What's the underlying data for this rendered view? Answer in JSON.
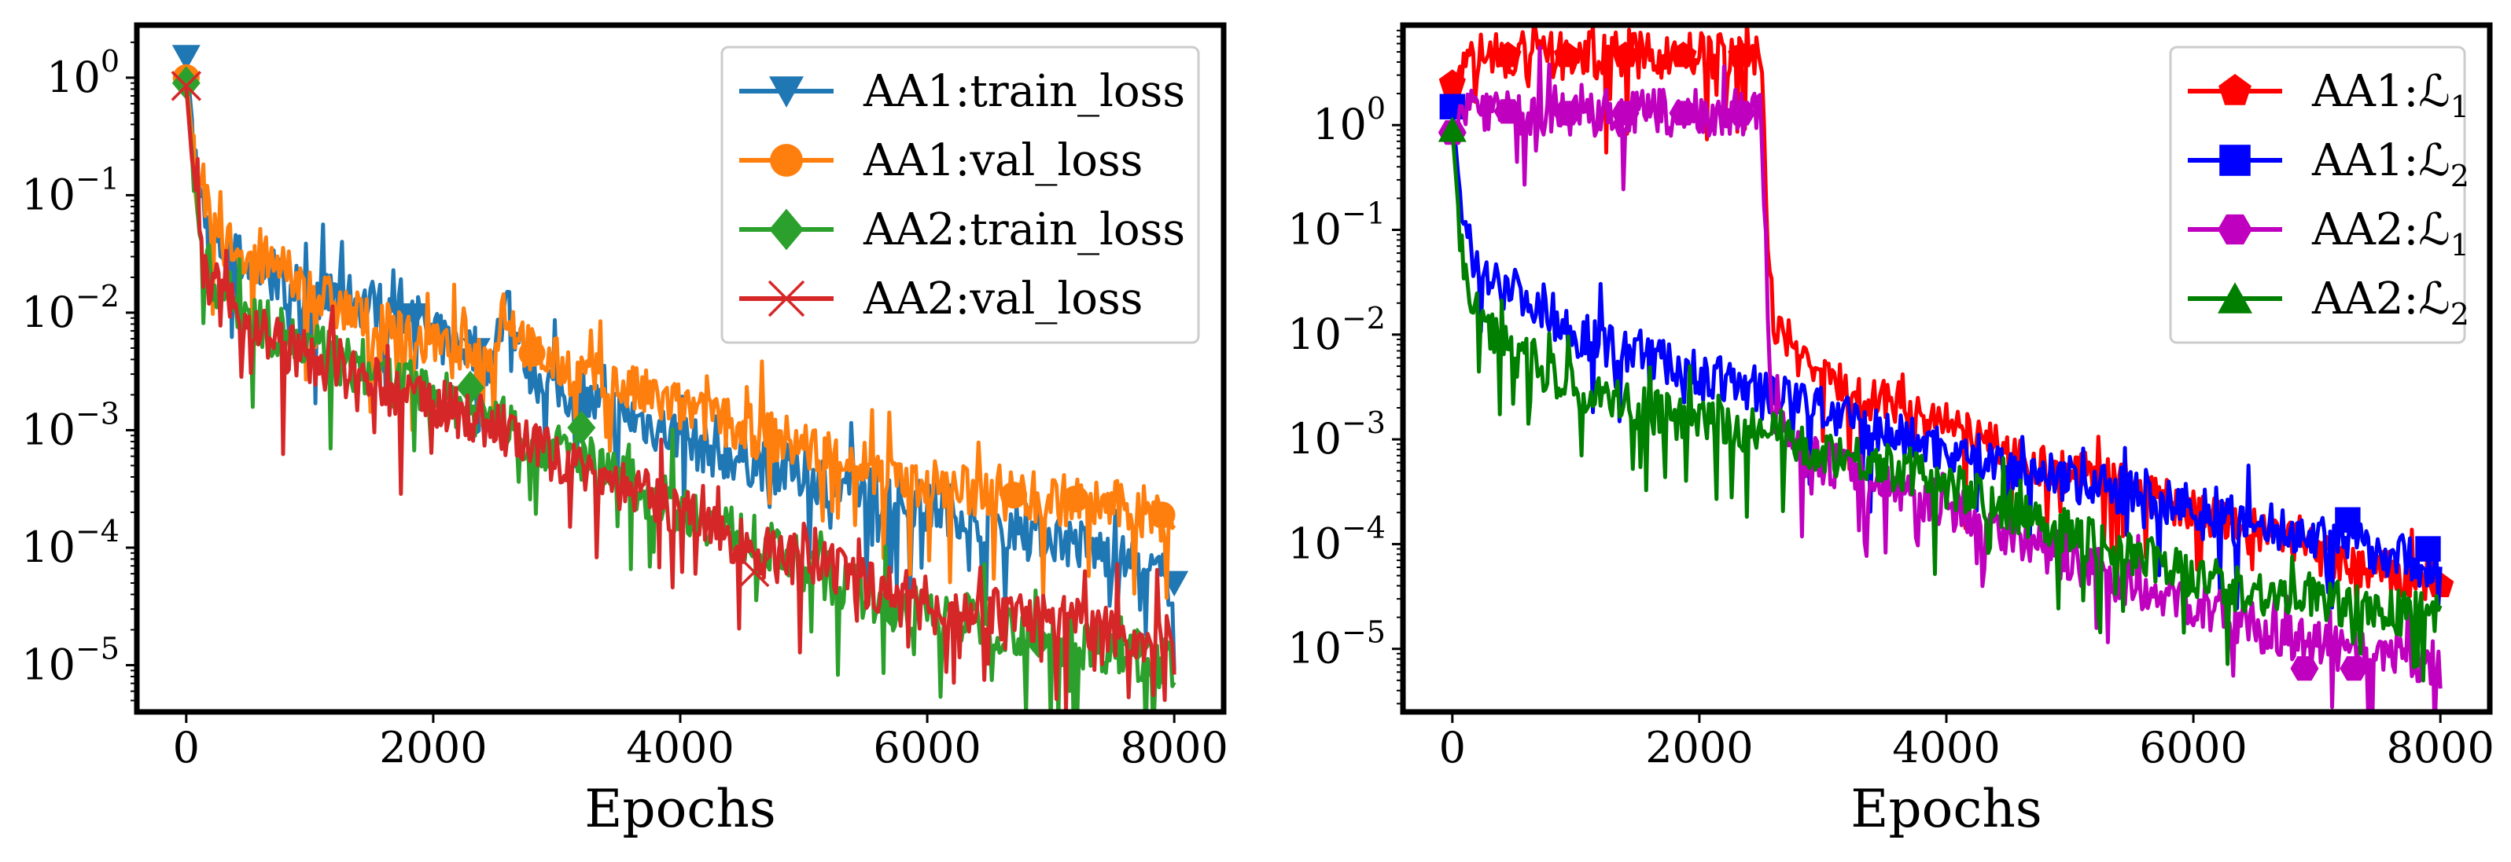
{
  "chart_data": [
    {
      "type": "line",
      "yscale": "log",
      "xlabel": "Epochs",
      "ylabel": "",
      "xlim": [
        -400,
        8400
      ],
      "ylim": [
        4e-06,
        2.8
      ],
      "xticks": [
        0,
        2000,
        4000,
        6000,
        8000
      ],
      "xtick_labels": [
        "0",
        "2000",
        "4000",
        "6000",
        "8000"
      ],
      "yticks": [
        1,
        0.1,
        0.01,
        0.001,
        0.0001,
        1e-05
      ],
      "ytick_labels": [
        {
          "base": "10",
          "exp": "0"
        },
        {
          "base": "10",
          "exp": "−1"
        },
        {
          "base": "10",
          "exp": "−2"
        },
        {
          "base": "10",
          "exp": "−3"
        },
        {
          "base": "10",
          "exp": "−4"
        },
        {
          "base": "10",
          "exp": "−5"
        }
      ],
      "legend_position": "top-right",
      "series": [
        {
          "name": "AA1:train_loss",
          "color": "#1f77b4",
          "marker": "triangle-down",
          "x": [
            0,
            50,
            100,
            200,
            400,
            700,
            1000,
            1500,
            1850,
            2000,
            2350,
            2500,
            2550,
            2800,
            3200,
            3700,
            4200,
            4700,
            5300,
            5800,
            6300,
            6800,
            7300,
            7700,
            8000
          ],
          "y": [
            1.5,
            0.4,
            0.1,
            0.04,
            0.03,
            0.02,
            0.015,
            0.012,
            0.0095,
            0.006,
            0.0048,
            0.0035,
            0.015,
            0.003,
            0.0018,
            0.0012,
            0.0007,
            0.0005,
            0.00035,
            0.00025,
            0.0002,
            0.00015,
            0.0001,
            7e-05,
            5e-05
          ],
          "marker_x": [
            0,
            1850,
            2350,
            8000
          ],
          "marker_y": [
            1.5,
            0.0095,
            0.0048,
            5e-05
          ]
        },
        {
          "name": "AA1:val_loss",
          "color": "#ff7f0e",
          "marker": "circle",
          "x": [
            0,
            50,
            100,
            200,
            400,
            700,
            1000,
            1500,
            2000,
            2500,
            2550,
            2800,
            3200,
            3700,
            4200,
            4700,
            5300,
            5800,
            6300,
            6700,
            7200,
            7700,
            8000
          ],
          "y": [
            1.0,
            0.3,
            0.09,
            0.05,
            0.035,
            0.025,
            0.015,
            0.008,
            0.005,
            0.004,
            0.012,
            0.0045,
            0.003,
            0.002,
            0.0013,
            0.0009,
            0.0006,
            0.0004,
            0.0003,
            0.00028,
            0.00025,
            0.00021,
            0.00017
          ],
          "marker_x": [
            0,
            2800,
            6700,
            7200,
            7900
          ],
          "marker_y": [
            1.0,
            0.0045,
            0.00028,
            0.00026,
            0.00019
          ]
        },
        {
          "name": "AA2:train_loss",
          "color": "#2ca02c",
          "marker": "diamond",
          "x": [
            0,
            50,
            100,
            200,
            400,
            700,
            1000,
            1500,
            2000,
            2500,
            2800,
            3200,
            3700,
            4200,
            4700,
            5300,
            5800,
            6300,
            6900,
            7500,
            8000
          ],
          "y": [
            0.9,
            0.2,
            0.05,
            0.02,
            0.012,
            0.007,
            0.005,
            0.003,
            0.002,
            0.0013,
            0.0008,
            0.0006,
            0.0003,
            0.00018,
            0.0001,
            5e-05,
            3e-05,
            2.5e-05,
            1.8e-05,
            1.4e-05,
            1e-05
          ],
          "marker_x": [
            0,
            2300,
            3200,
            5700,
            6900,
            7700
          ],
          "marker_y": [
            0.9,
            0.0023,
            0.00105,
            3e-05,
            1.6e-05,
            1.5e-05
          ]
        },
        {
          "name": "AA2:val_loss",
          "color": "#d62728",
          "marker": "x",
          "x": [
            0,
            50,
            100,
            200,
            400,
            700,
            1000,
            1500,
            2000,
            2500,
            2800,
            3200,
            3700,
            4200,
            4700,
            5300,
            5800,
            6300,
            6900,
            7500,
            8000
          ],
          "y": [
            0.85,
            0.18,
            0.04,
            0.015,
            0.01,
            0.006,
            0.004,
            0.0025,
            0.0017,
            0.0011,
            0.0007,
            0.0005,
            0.00028,
            0.00016,
            9e-05,
            6e-05,
            4e-05,
            3e-05,
            2.5e-05,
            2e-05,
            1.5e-05
          ],
          "marker_x": [
            0,
            4600
          ],
          "marker_y": [
            0.85,
            6.2e-05
          ]
        }
      ]
    },
    {
      "type": "line",
      "yscale": "log",
      "xlabel": "Epochs",
      "ylabel": "",
      "xlim": [
        -400,
        8400
      ],
      "ylim": [
        2.5e-06,
        9
      ],
      "xticks": [
        0,
        2000,
        4000,
        6000,
        8000
      ],
      "xtick_labels": [
        "0",
        "2000",
        "4000",
        "6000",
        "8000"
      ],
      "yticks": [
        1,
        0.1,
        0.01,
        0.001,
        0.0001,
        1e-05
      ],
      "ytick_labels": [
        {
          "base": "10",
          "exp": "0"
        },
        {
          "base": "10",
          "exp": "−1"
        },
        {
          "base": "10",
          "exp": "−2"
        },
        {
          "base": "10",
          "exp": "−3"
        },
        {
          "base": "10",
          "exp": "−4"
        },
        {
          "base": "10",
          "exp": "−5"
        }
      ],
      "legend_position": "top-right",
      "series": [
        {
          "name": "AA1:ℒ",
          "sub": "1",
          "color": "#ff0000",
          "marker": "pentagon",
          "x": [
            0,
            150,
            400,
            2500,
            2520,
            2550,
            2600,
            2800,
            3200,
            3700,
            4200,
            4700,
            5300,
            5800,
            6300,
            6800,
            7300,
            8000
          ],
          "y": [
            2.5,
            4.6,
            4.6,
            4.6,
            1.2,
            0.1,
            0.015,
            0.006,
            0.003,
            0.002,
            0.001,
            0.0006,
            0.0004,
            0.00025,
            0.00015,
            0.0001,
            6e-05,
            4e-05
          ],
          "marker_x": [
            0,
            450,
            930,
            1400,
            1870,
            2340,
            8000
          ],
          "marker_y": [
            2.5,
            4.6,
            4.6,
            4.6,
            4.6,
            4.6,
            4e-05
          ]
        },
        {
          "name": "AA1:ℒ",
          "sub": "2",
          "color": "#0000ff",
          "marker": "square",
          "x": [
            0,
            50,
            100,
            200,
            400,
            700,
            1000,
            1500,
            2000,
            2500,
            2800,
            3200,
            3700,
            4200,
            4700,
            5300,
            5800,
            6300,
            6800,
            7300,
            7800,
            8000
          ],
          "y": [
            1.5,
            0.3,
            0.08,
            0.05,
            0.03,
            0.02,
            0.01,
            0.007,
            0.004,
            0.003,
            0.0025,
            0.0015,
            0.001,
            0.0007,
            0.0005,
            0.00035,
            0.00025,
            0.00018,
            0.00013,
            0.0001,
            7e-05,
            5e-05
          ],
          "marker_x": [
            0,
            7250,
            7900
          ],
          "marker_y": [
            1.5,
            0.00017,
            9e-05
          ]
        },
        {
          "name": "AA2:ℒ",
          "sub": "1",
          "color": "#bf00bf",
          "marker": "hexagon",
          "x": [
            0,
            150,
            400,
            2500,
            2520,
            2550,
            2600,
            2800,
            3200,
            3700,
            4200,
            4700,
            5300,
            5800,
            6300,
            6800,
            7300,
            8000
          ],
          "y": [
            0.85,
            1.7,
            1.3,
            1.3,
            0.3,
            0.01,
            0.002,
            0.0008,
            0.0005,
            0.0003,
            0.0002,
            0.0001,
            5e-05,
            3e-05,
            2e-05,
            1.2e-05,
            9e-06,
            7e-06
          ],
          "marker_x": [
            0,
            450,
            930,
            1400,
            1870,
            2340,
            6900,
            7300
          ],
          "marker_y": [
            0.85,
            1.35,
            1.3,
            1.3,
            1.3,
            1.3,
            6.5e-06,
            6.5e-06
          ]
        },
        {
          "name": "AA2:ℒ",
          "sub": "2",
          "color": "#007f00",
          "marker": "triangle-up",
          "x": [
            0,
            50,
            100,
            200,
            400,
            700,
            1000,
            1500,
            2000,
            2500,
            2800,
            3200,
            3700,
            4200,
            4700,
            5300,
            5800,
            6300,
            6800,
            7300,
            8000
          ],
          "y": [
            0.9,
            0.15,
            0.03,
            0.015,
            0.008,
            0.005,
            0.003,
            0.002,
            0.0015,
            0.0012,
            0.0009,
            0.0007,
            0.0005,
            0.0003,
            0.00018,
            0.0001,
            6e-05,
            4e-05,
            3e-05,
            2.5e-05,
            2e-05
          ],
          "marker_x": [
            0
          ],
          "marker_y": [
            0.9
          ]
        }
      ]
    }
  ]
}
